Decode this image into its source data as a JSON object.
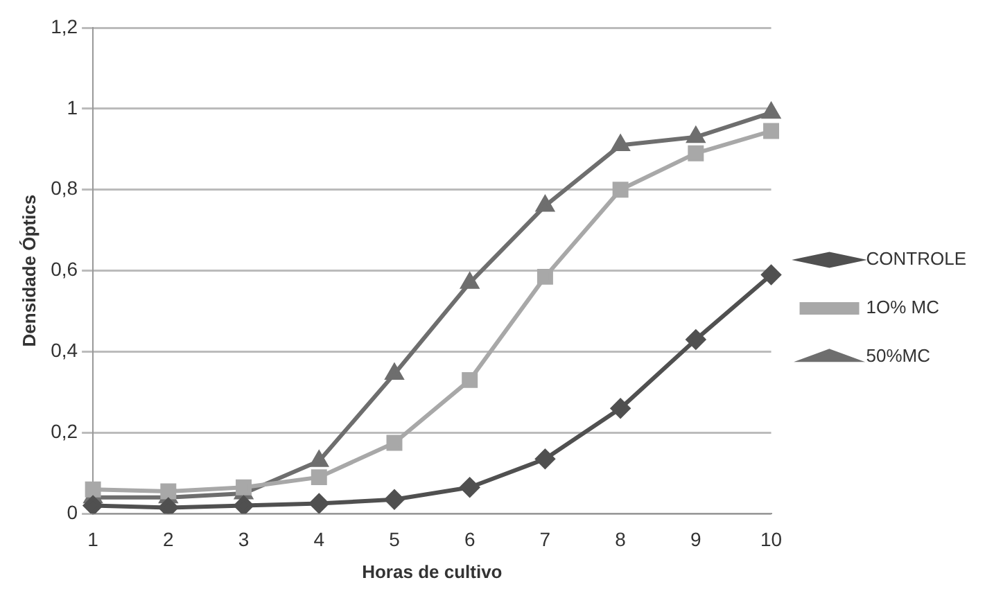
{
  "chart_data": {
    "type": "line",
    "xlabel": "Horas de cultivo",
    "ylabel": "Densidade Óptics",
    "categories": [
      "1",
      "2",
      "3",
      "4",
      "5",
      "6",
      "7",
      "8",
      "9",
      "10"
    ],
    "series": [
      {
        "name": "CONTROLE",
        "color": "#505050",
        "marker": "diamond",
        "values": [
          0.02,
          0.015,
          0.02,
          0.025,
          0.035,
          0.065,
          0.135,
          0.26,
          0.43,
          0.59
        ]
      },
      {
        "name": "1O% MC",
        "color": "#a8a8a8",
        "marker": "square",
        "values": [
          0.06,
          0.055,
          0.065,
          0.09,
          0.175,
          0.33,
          0.585,
          0.8,
          0.89,
          0.945
        ]
      },
      {
        "name": "50%MC",
        "color": "#6e6e6e",
        "marker": "triangle",
        "values": [
          0.04,
          0.04,
          0.05,
          0.13,
          0.345,
          0.57,
          0.76,
          0.91,
          0.93,
          0.99
        ]
      }
    ],
    "ylim": [
      0,
      1.2
    ],
    "yticks": [
      0,
      {
        "value": 0.2,
        "label": "0,2"
      },
      {
        "value": 0.4,
        "label": "0,4"
      },
      {
        "value": 0.6,
        "label": "0,6"
      },
      {
        "value": 0.8,
        "label": "0,8"
      },
      1,
      {
        "value": 1.2,
        "label": "1,2"
      }
    ],
    "grid": "y",
    "legend": "right",
    "line_style": "solid"
  }
}
